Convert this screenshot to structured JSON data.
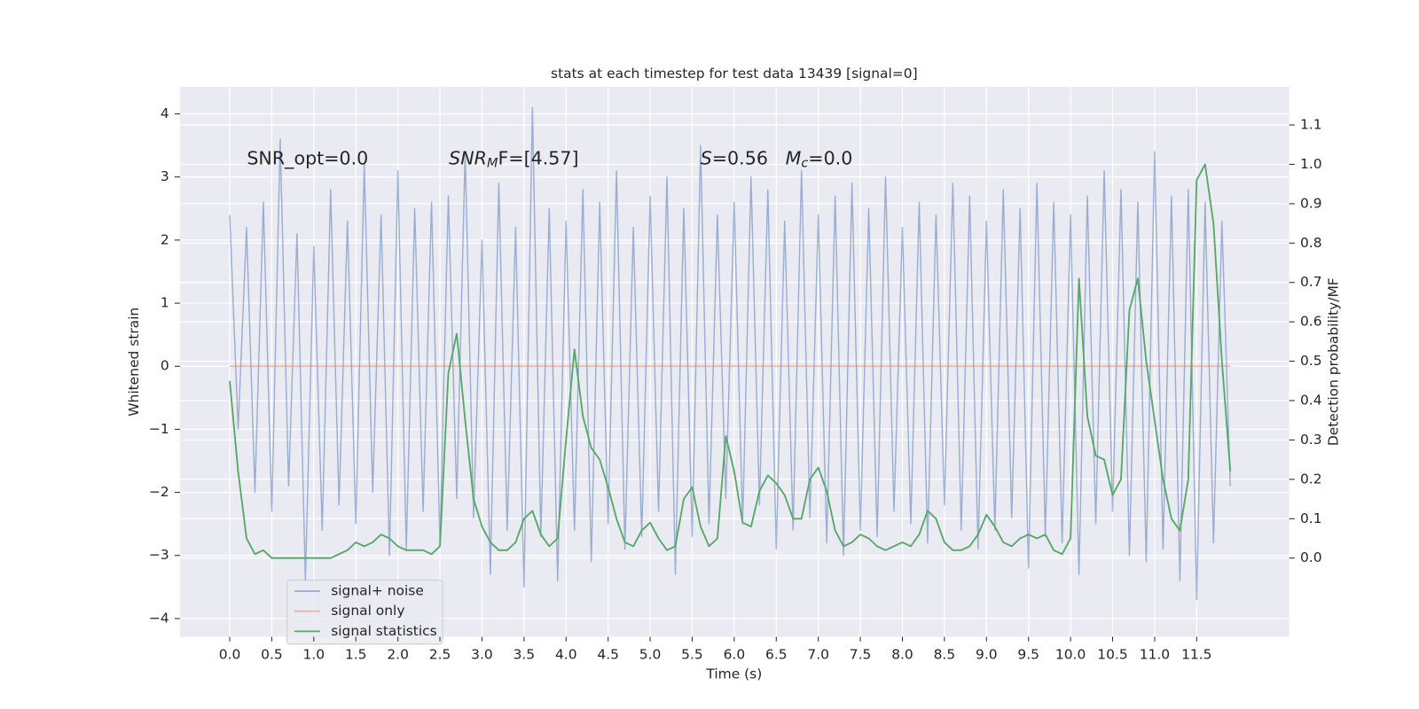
{
  "chart_data": {
    "type": "line",
    "title": "stats at each timestep for test data 13439 [signal=0]",
    "xlabel": "Time (s)",
    "ylabel": "Whitened strain",
    "y2label": "Detection probability/MF",
    "annotations": {
      "snr_opt": "SNR_opt=0.0",
      "snr_mf": [
        "SNR",
        "M",
        "F=[4.57]"
      ],
      "s": [
        "S",
        "=0.56"
      ],
      "mc": [
        "M",
        "c",
        "=0.0"
      ]
    },
    "x": [
      0.0,
      0.1,
      0.2,
      0.3,
      0.4,
      0.5,
      0.6,
      0.7,
      0.8,
      0.9,
      1.0,
      1.1,
      1.2,
      1.3,
      1.4,
      1.5,
      1.6,
      1.7,
      1.8,
      1.9,
      2.0,
      2.1,
      2.2,
      2.3,
      2.4,
      2.5,
      2.6,
      2.7,
      2.8,
      2.9,
      3.0,
      3.1,
      3.2,
      3.3,
      3.4,
      3.5,
      3.6,
      3.7,
      3.8,
      3.9,
      4.0,
      4.1,
      4.2,
      4.3,
      4.4,
      4.5,
      4.6,
      4.7,
      4.8,
      4.9,
      5.0,
      5.1,
      5.2,
      5.3,
      5.4,
      5.5,
      5.6,
      5.7,
      5.8,
      5.9,
      6.0,
      6.1,
      6.2,
      6.3,
      6.4,
      6.5,
      6.6,
      6.7,
      6.8,
      6.9,
      7.0,
      7.1,
      7.2,
      7.3,
      7.4,
      7.5,
      7.6,
      7.7,
      7.8,
      7.9,
      8.0,
      8.1,
      8.2,
      8.3,
      8.4,
      8.5,
      8.6,
      8.7,
      8.8,
      8.9,
      9.0,
      9.1,
      9.2,
      9.3,
      9.4,
      9.5,
      9.6,
      9.7,
      9.8,
      9.9,
      10.0,
      10.1,
      10.2,
      10.3,
      10.4,
      10.5,
      10.6,
      10.7,
      10.8,
      10.9,
      11.0,
      11.1,
      11.2,
      11.3,
      11.4,
      11.5,
      11.6,
      11.7,
      11.8,
      11.9
    ],
    "series": [
      {
        "name": "signal+ noise",
        "color": "#4c72b0",
        "values": [
          2.4,
          -1.0,
          2.2,
          -2.0,
          2.6,
          -2.3,
          3.6,
          -1.9,
          2.1,
          -3.4,
          1.9,
          -2.6,
          2.8,
          -2.2,
          2.3,
          -2.5,
          3.2,
          -2.0,
          2.4,
          -3.0,
          3.1,
          -2.9,
          2.5,
          -2.3,
          2.6,
          -2.8,
          2.7,
          -2.1,
          3.4,
          -2.4,
          2.0,
          -3.3,
          2.9,
          -2.6,
          2.2,
          -3.5,
          4.1,
          -2.7,
          2.5,
          -3.4,
          2.3,
          -2.6,
          2.8,
          -3.1,
          2.6,
          -2.5,
          3.1,
          -2.9,
          2.2,
          -2.7,
          2.7,
          -2.3,
          3.0,
          -3.3,
          2.5,
          -2.7,
          3.5,
          -2.5,
          2.4,
          -2.1,
          2.6,
          -2.5,
          3.0,
          -2.2,
          2.8,
          -2.9,
          2.3,
          -2.6,
          3.1,
          -2.4,
          2.4,
          -2.8,
          2.7,
          -3.0,
          2.9,
          -2.6,
          2.5,
          -2.7,
          3.0,
          -2.3,
          2.2,
          -2.5,
          2.6,
          -2.8,
          2.4,
          -2.2,
          2.9,
          -2.6,
          2.7,
          -2.9,
          2.3,
          -2.6,
          2.8,
          -2.4,
          2.5,
          -3.2,
          2.9,
          -2.7,
          2.6,
          -2.8,
          2.4,
          -3.3,
          2.7,
          -2.5,
          3.1,
          -2.3,
          2.8,
          -3.0,
          2.6,
          -3.1,
          3.4,
          -2.9,
          2.7,
          -3.4,
          2.8,
          -3.7,
          2.6,
          -2.8,
          2.3,
          -1.9
        ]
      },
      {
        "name": "signal only",
        "color": "#dd8452",
        "values": [
          0,
          0,
          0,
          0,
          0,
          0,
          0,
          0,
          0,
          0,
          0,
          0,
          0,
          0,
          0,
          0,
          0,
          0,
          0,
          0,
          0,
          0,
          0,
          0,
          0,
          0,
          0,
          0,
          0,
          0,
          0,
          0,
          0,
          0,
          0,
          0,
          0,
          0,
          0,
          0,
          0,
          0,
          0,
          0,
          0,
          0,
          0,
          0,
          0,
          0,
          0,
          0,
          0,
          0,
          0,
          0,
          0,
          0,
          0,
          0,
          0,
          0,
          0,
          0,
          0,
          0,
          0,
          0,
          0,
          0,
          0,
          0,
          0,
          0,
          0,
          0,
          0,
          0,
          0,
          0,
          0,
          0,
          0,
          0,
          0,
          0,
          0,
          0,
          0,
          0,
          0,
          0,
          0,
          0,
          0,
          0,
          0,
          0,
          0,
          0,
          0,
          0,
          0,
          0,
          0,
          0,
          0,
          0,
          0,
          0,
          0,
          0,
          0,
          0,
          0,
          0,
          0,
          0,
          0,
          0
        ]
      },
      {
        "name": "signal statistics",
        "color": "#55a868",
        "axis": "y2",
        "values": [
          0.45,
          0.22,
          0.05,
          0.01,
          0.02,
          0.0,
          0.0,
          0.0,
          0.0,
          0.0,
          0.0,
          0.0,
          0.0,
          0.01,
          0.02,
          0.04,
          0.03,
          0.04,
          0.06,
          0.05,
          0.03,
          0.02,
          0.02,
          0.02,
          0.01,
          0.03,
          0.47,
          0.57,
          0.35,
          0.15,
          0.08,
          0.04,
          0.02,
          0.02,
          0.04,
          0.1,
          0.12,
          0.06,
          0.03,
          0.05,
          0.3,
          0.53,
          0.36,
          0.28,
          0.25,
          0.18,
          0.1,
          0.04,
          0.03,
          0.07,
          0.09,
          0.05,
          0.02,
          0.03,
          0.15,
          0.18,
          0.08,
          0.03,
          0.05,
          0.31,
          0.22,
          0.09,
          0.08,
          0.17,
          0.21,
          0.19,
          0.16,
          0.1,
          0.1,
          0.2,
          0.23,
          0.17,
          0.07,
          0.03,
          0.04,
          0.06,
          0.05,
          0.03,
          0.02,
          0.03,
          0.04,
          0.03,
          0.06,
          0.12,
          0.1,
          0.04,
          0.02,
          0.02,
          0.03,
          0.06,
          0.11,
          0.08,
          0.04,
          0.03,
          0.05,
          0.06,
          0.05,
          0.06,
          0.02,
          0.01,
          0.05,
          0.71,
          0.36,
          0.26,
          0.25,
          0.16,
          0.2,
          0.63,
          0.71,
          0.5,
          0.35,
          0.2,
          0.1,
          0.07,
          0.2,
          0.96,
          1.0,
          0.85,
          0.5,
          0.22
        ]
      }
    ],
    "xlim": [
      -0.59,
      12.6
    ],
    "ylim": [
      -4.29,
      4.43
    ],
    "y2lim": [
      -0.2,
      1.197
    ],
    "xticks": [
      {
        "value": 0,
        "label": "0.0"
      },
      {
        "value": 0.5,
        "label": "0.5"
      },
      {
        "value": 1,
        "label": "1.0"
      },
      {
        "value": 1.5,
        "label": "1.5"
      },
      {
        "value": 2,
        "label": "2.0"
      },
      {
        "value": 2.5,
        "label": "2.5"
      },
      {
        "value": 3,
        "label": "3.0"
      },
      {
        "value": 3.5,
        "label": "3.5"
      },
      {
        "value": 4,
        "label": "4.0"
      },
      {
        "value": 4.5,
        "label": "4.5"
      },
      {
        "value": 5,
        "label": "5.0"
      },
      {
        "value": 5.5,
        "label": "5.5"
      },
      {
        "value": 6,
        "label": "6.0"
      },
      {
        "value": 6.5,
        "label": "6.5"
      },
      {
        "value": 7,
        "label": "7.0"
      },
      {
        "value": 7.5,
        "label": "7.5"
      },
      {
        "value": 8,
        "label": "8.0"
      },
      {
        "value": 8.5,
        "label": "8.5"
      },
      {
        "value": 9,
        "label": "9.0"
      },
      {
        "value": 9.5,
        "label": "9.5"
      },
      {
        "value": 10,
        "label": "10.0"
      },
      {
        "value": 10.5,
        "label": "10.5"
      },
      {
        "value": 11,
        "label": "11.0"
      },
      {
        "value": 11.5,
        "label": "11.5"
      }
    ],
    "yticks": [
      {
        "value": -4,
        "label": "−4"
      },
      {
        "value": -3,
        "label": "−3"
      },
      {
        "value": -2,
        "label": "−2"
      },
      {
        "value": -1,
        "label": "−1"
      },
      0,
      1,
      2,
      3,
      4
    ],
    "y2ticks": [
      {
        "value": 0,
        "label": "0.0"
      },
      {
        "value": 0.1,
        "label": "0.1"
      },
      {
        "value": 0.2,
        "label": "0.2"
      },
      {
        "value": 0.3,
        "label": "0.3"
      },
      {
        "value": 0.4,
        "label": "0.4"
      },
      {
        "value": 0.5,
        "label": "0.5"
      },
      {
        "value": 0.6,
        "label": "0.6"
      },
      {
        "value": 0.7,
        "label": "0.7"
      },
      {
        "value": 0.8,
        "label": "0.8"
      },
      {
        "value": 0.9,
        "label": "0.9"
      },
      {
        "value": 1.0,
        "label": "1.0"
      },
      {
        "value": 1.1,
        "label": "1.1"
      }
    ],
    "grid": true,
    "legend": "lower left"
  }
}
